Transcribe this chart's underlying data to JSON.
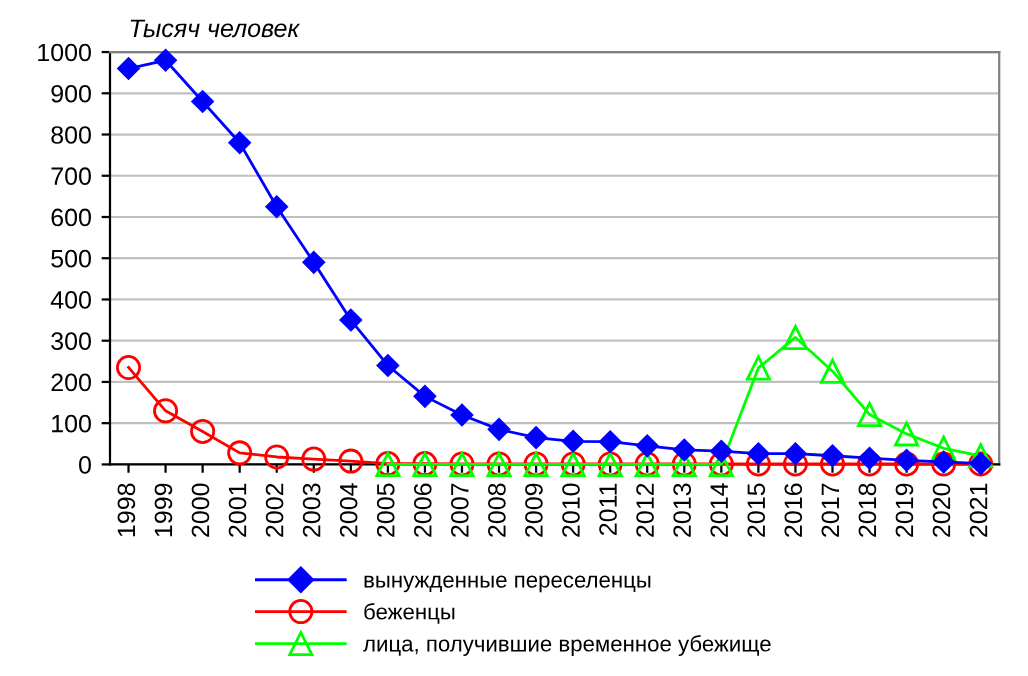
{
  "chart_data": {
    "type": "line",
    "ylabel": "Тысяч человек",
    "categories": [
      "1998",
      "1999",
      "2000",
      "2001",
      "2002",
      "2003",
      "2004",
      "2005",
      "2006",
      "2007",
      "2008",
      "2009",
      "2010",
      "2011",
      "2012",
      "2013",
      "2014",
      "2015",
      "2016",
      "2017",
      "2018",
      "2019",
      "2020",
      "2021"
    ],
    "series": [
      {
        "name": "вынужденные переселенцы",
        "color": "#0000ff",
        "marker": "diamond",
        "values": [
          960,
          980,
          880,
          780,
          625,
          490,
          350,
          240,
          165,
          120,
          85,
          65,
          56,
          55,
          45,
          35,
          32,
          26,
          26,
          21,
          15,
          10,
          6,
          2
        ]
      },
      {
        "name": "беженцы",
        "color": "#ff0000",
        "marker": "circle",
        "values": [
          235,
          130,
          80,
          28,
          18,
          13,
          8,
          2,
          2,
          1,
          1,
          1,
          1,
          1,
          1,
          1,
          1,
          1,
          1,
          1,
          1,
          1,
          1,
          1
        ]
      },
      {
        "name": "лица, получившие временное убежище",
        "color": "#00ff00",
        "marker": "triangle",
        "values": [
          null,
          null,
          null,
          null,
          null,
          null,
          null,
          0,
          0,
          0,
          0,
          0,
          0,
          0,
          0,
          0,
          0,
          234,
          308,
          226,
          121,
          74,
          39,
          21
        ]
      }
    ],
    "ylim": [
      0,
      1000
    ],
    "yticks": [
      0,
      100,
      200,
      300,
      400,
      500,
      600,
      700,
      800,
      900,
      1000
    ],
    "grid": "y",
    "legend": "bottom"
  }
}
